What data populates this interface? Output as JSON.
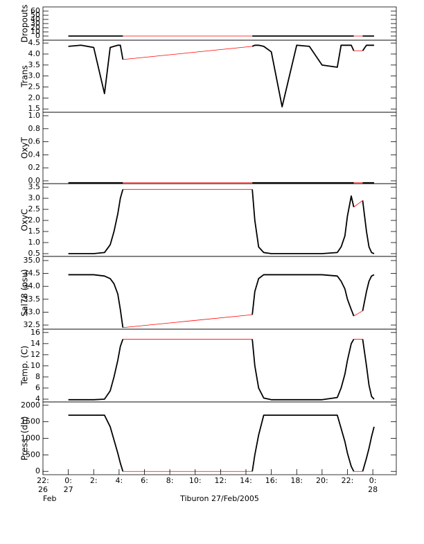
{
  "chart_data": [
    {
      "type": "line",
      "ylabel": "Dropouts",
      "xlim": [
        -2,
        25.85
      ],
      "ylim": [
        -10,
        70
      ],
      "yticks": [
        0,
        10,
        20,
        30,
        40,
        50,
        60
      ],
      "x": [
        0,
        1,
        2,
        2.85,
        3.3,
        3.6,
        3.9,
        4.1,
        4.3,
        9.4,
        14.5,
        14.7,
        15,
        15.4,
        16,
        16.85,
        18,
        19,
        20,
        21.2,
        21.5,
        21.8,
        22,
        22.3,
        22.5,
        22.85,
        23.2,
        23.5,
        23.7,
        23.9,
        24.1
      ],
      "series": [
        {
          "color": "#000000",
          "values": [
            0,
            0,
            0,
            0,
            0,
            0,
            0,
            0,
            0,
            null,
            0,
            0,
            0,
            0,
            0,
            0,
            0,
            0,
            0,
            0,
            0,
            0,
            0,
            0,
            0,
            null,
            0,
            0,
            0,
            0,
            0
          ]
        },
        {
          "color": "#ff0000",
          "values": [
            null,
            null,
            null,
            null,
            null,
            null,
            null,
            null,
            0,
            0,
            0,
            null,
            null,
            null,
            null,
            null,
            null,
            null,
            null,
            null,
            null,
            null,
            null,
            null,
            0,
            0,
            0,
            null,
            null,
            null,
            null
          ]
        }
      ]
    },
    {
      "type": "line",
      "ylabel": "Trans",
      "xlim": [
        -2,
        25.85
      ],
      "ylim": [
        1.35,
        4.63
      ],
      "yticks": [
        1.5,
        {
          "value": 2,
          "label": "2.0"
        },
        2.5,
        {
          "value": 3,
          "label": "3.0"
        },
        3.5,
        {
          "value": 4,
          "label": "4.0"
        },
        4.5
      ],
      "x": [
        0,
        1,
        2,
        2.85,
        3.3,
        3.6,
        3.9,
        4.1,
        4.3,
        9.4,
        14.5,
        14.7,
        15,
        15.4,
        16,
        16.85,
        18,
        19,
        20,
        21.2,
        21.5,
        21.8,
        22,
        22.3,
        22.5,
        22.85,
        23.2,
        23.5,
        23.7,
        23.9,
        24.1
      ],
      "series": [
        {
          "color": "#000000",
          "values": [
            4.35,
            4.4,
            4.3,
            2.2,
            4.3,
            4.35,
            4.4,
            4.4,
            3.75,
            null,
            4.35,
            4.4,
            4.4,
            4.35,
            4.1,
            1.6,
            4.4,
            4.35,
            3.5,
            3.4,
            4.4,
            4.4,
            4.4,
            4.4,
            4.15,
            null,
            4.15,
            4.4,
            4.4,
            4.4,
            4.4
          ]
        },
        {
          "color": "#ff0000",
          "values": [
            null,
            null,
            null,
            null,
            null,
            null,
            null,
            null,
            3.75,
            4.05,
            4.35,
            null,
            null,
            null,
            null,
            null,
            null,
            null,
            null,
            null,
            null,
            null,
            null,
            null,
            4.15,
            4.15,
            4.15,
            null,
            null,
            null,
            null
          ]
        }
      ]
    },
    {
      "type": "line",
      "ylabel": "OxyT",
      "xlim": [
        -2,
        25.85
      ],
      "ylim": [
        -0.043,
        1.053
      ],
      "yticks": [
        {
          "value": 0,
          "label": "0.0"
        },
        0.2,
        0.4,
        0.6,
        0.8,
        {
          "value": 1,
          "label": "1.0"
        }
      ],
      "x": [
        0,
        1,
        2,
        2.85,
        3.3,
        3.6,
        3.9,
        4.1,
        4.3,
        9.4,
        14.5,
        14.7,
        15,
        15.4,
        16,
        16.85,
        18,
        19,
        20,
        21.2,
        21.5,
        21.8,
        22,
        22.3,
        22.5,
        22.85,
        23.2,
        23.5,
        23.7,
        23.9,
        24.1
      ],
      "series": [
        {
          "color": "#000000",
          "values": [
            -0.03,
            -0.03,
            -0.03,
            -0.03,
            -0.03,
            -0.03,
            -0.03,
            -0.03,
            -0.03,
            null,
            -0.03,
            -0.03,
            -0.03,
            -0.03,
            -0.03,
            -0.03,
            -0.03,
            -0.03,
            -0.03,
            -0.03,
            -0.03,
            -0.03,
            -0.03,
            -0.03,
            -0.03,
            null,
            -0.03,
            -0.03,
            -0.03,
            -0.03,
            -0.03
          ]
        },
        {
          "color": "#ff0000",
          "values": [
            null,
            null,
            null,
            null,
            null,
            null,
            null,
            null,
            -0.03,
            -0.03,
            -0.03,
            null,
            null,
            null,
            null,
            null,
            null,
            null,
            null,
            null,
            null,
            null,
            null,
            null,
            -0.03,
            -0.03,
            -0.03,
            null,
            null,
            null,
            null
          ]
        }
      ]
    },
    {
      "type": "line",
      "ylabel": "OxyC",
      "xlim": [
        -2,
        25.85
      ],
      "ylim": [
        0.375,
        3.66
      ],
      "yticks": [
        0.5,
        {
          "value": 1,
          "label": "1.0"
        },
        1.5,
        {
          "value": 2,
          "label": "2.0"
        },
        2.5,
        {
          "value": 3,
          "label": "3.0"
        },
        3.5
      ],
      "x": [
        0,
        1,
        2,
        2.85,
        3.3,
        3.6,
        3.9,
        4.1,
        4.3,
        9.4,
        14.5,
        14.7,
        15,
        15.4,
        16,
        16.85,
        18,
        19,
        20,
        21.2,
        21.5,
        21.8,
        22,
        22.3,
        22.5,
        22.85,
        23.2,
        23.5,
        23.7,
        23.9,
        24.1
      ],
      "series": [
        {
          "color": "#000000",
          "values": [
            0.5,
            0.5,
            0.5,
            0.55,
            0.9,
            1.5,
            2.3,
            3.0,
            3.4,
            null,
            3.4,
            2.0,
            0.8,
            0.55,
            0.5,
            0.5,
            0.5,
            0.5,
            0.5,
            0.55,
            0.8,
            1.3,
            2.2,
            3.1,
            2.6,
            null,
            2.9,
            1.5,
            0.8,
            0.55,
            0.5
          ]
        },
        {
          "color": "#ff0000",
          "values": [
            null,
            null,
            null,
            null,
            null,
            null,
            null,
            null,
            3.4,
            3.4,
            3.4,
            null,
            null,
            null,
            null,
            null,
            null,
            null,
            null,
            null,
            null,
            null,
            null,
            null,
            2.6,
            2.75,
            2.9,
            null,
            null,
            null,
            null
          ]
        }
      ]
    },
    {
      "type": "line",
      "ylabel": "Sal78 (psu)",
      "xlim": [
        -2,
        25.85
      ],
      "ylim": [
        32.34,
        35.16
      ],
      "yticks": [
        32.5,
        {
          "value": 33,
          "label": "33.0"
        },
        33.5,
        {
          "value": 34,
          "label": "34.0"
        },
        34.5,
        {
          "value": 35,
          "label": "35.0"
        }
      ],
      "x": [
        0,
        1,
        2,
        2.85,
        3.3,
        3.6,
        3.9,
        4.1,
        4.3,
        9.4,
        14.5,
        14.7,
        15,
        15.4,
        16,
        16.85,
        18,
        19,
        20,
        21.2,
        21.5,
        21.8,
        22,
        22.3,
        22.5,
        22.85,
        23.2,
        23.5,
        23.7,
        23.9,
        24.1
      ],
      "series": [
        {
          "color": "#000000",
          "values": [
            34.45,
            34.45,
            34.45,
            34.4,
            34.3,
            34.1,
            33.7,
            33.1,
            32.4,
            null,
            32.9,
            33.8,
            34.3,
            34.45,
            34.45,
            34.45,
            34.45,
            34.45,
            34.45,
            34.4,
            34.2,
            33.9,
            33.5,
            33.1,
            32.85,
            null,
            33.05,
            33.8,
            34.2,
            34.4,
            34.45
          ]
        },
        {
          "color": "#ff0000",
          "values": [
            null,
            null,
            null,
            null,
            null,
            null,
            null,
            null,
            32.4,
            32.65,
            32.9,
            null,
            null,
            null,
            null,
            null,
            null,
            null,
            null,
            null,
            null,
            null,
            null,
            null,
            32.85,
            32.95,
            33.05,
            null,
            null,
            null,
            null
          ]
        }
      ]
    },
    {
      "type": "line",
      "ylabel": "Temp. (C)",
      "xlim": [
        -2,
        25.85
      ],
      "ylim": [
        3.5,
        16.6
      ],
      "yticks": [
        4,
        6,
        8,
        10,
        12,
        14,
        16
      ],
      "x": [
        0,
        1,
        2,
        2.85,
        3.3,
        3.6,
        3.9,
        4.1,
        4.3,
        9.4,
        14.5,
        14.7,
        15,
        15.4,
        16,
        16.85,
        18,
        19,
        20,
        21.2,
        21.5,
        21.8,
        22,
        22.3,
        22.5,
        22.85,
        23.2,
        23.5,
        23.7,
        23.9,
        24.1
      ],
      "series": [
        {
          "color": "#000000",
          "values": [
            3.9,
            3.9,
            3.9,
            4.0,
            5.5,
            8,
            11,
            13.5,
            14.8,
            null,
            14.8,
            10,
            6,
            4.2,
            3.9,
            3.9,
            3.9,
            3.9,
            3.9,
            4.3,
            6,
            8.5,
            11,
            14,
            14.8,
            null,
            14.8,
            10,
            6.5,
            4.5,
            4.0
          ]
        },
        {
          "color": "#ff0000",
          "values": [
            null,
            null,
            null,
            null,
            null,
            null,
            null,
            null,
            14.8,
            14.8,
            14.8,
            null,
            null,
            null,
            null,
            null,
            null,
            null,
            null,
            null,
            null,
            null,
            null,
            null,
            14.8,
            14.8,
            14.8,
            null,
            null,
            null,
            null
          ]
        }
      ]
    },
    {
      "type": "line",
      "ylabel": "Press. (db)",
      "xlim": [
        -2,
        25.85
      ],
      "ylim": [
        -100,
        2100
      ],
      "yticks": [
        0,
        500,
        1000,
        1500,
        2000
      ],
      "xticks": [
        {
          "value": -2,
          "label": "22:"
        },
        {
          "value": 0,
          "label": "0:"
        },
        {
          "value": 2,
          "label": "2:"
        },
        {
          "value": 4,
          "label": "4:"
        },
        {
          "value": 6,
          "label": "6:"
        },
        {
          "value": 8,
          "label": "8:"
        },
        {
          "value": 10,
          "label": "10:"
        },
        {
          "value": 12,
          "label": "12:"
        },
        {
          "value": 14,
          "label": "14:"
        },
        {
          "value": 16,
          "label": "16:"
        },
        {
          "value": 18,
          "label": "18:"
        },
        {
          "value": 20,
          "label": "20:"
        },
        {
          "value": 22,
          "label": "22:"
        },
        {
          "value": 24,
          "label": "0:"
        }
      ],
      "xtick_day_labels": [
        {
          "value": -2,
          "label": "26"
        },
        {
          "value": 0,
          "label": "27"
        },
        {
          "value": 24,
          "label": "28"
        }
      ],
      "xtick_month_labels": [
        {
          "value": -2,
          "label": "Feb"
        }
      ],
      "xlabel": "Tiburon 27/Feb/2005",
      "x": [
        0,
        1,
        2,
        2.85,
        3.3,
        3.6,
        3.9,
        4.1,
        4.3,
        9.4,
        14.5,
        14.7,
        15,
        15.4,
        16,
        16.85,
        18,
        19,
        20,
        21.2,
        21.5,
        21.8,
        22,
        22.3,
        22.5,
        22.85,
        23.2,
        23.5,
        23.7,
        23.9,
        24.1
      ],
      "series": [
        {
          "color": "#000000",
          "values": [
            1700,
            1700,
            1700,
            1700,
            1350,
            950,
            550,
            250,
            0,
            null,
            0,
            500,
            1100,
            1700,
            1700,
            1700,
            1700,
            1700,
            1700,
            1700,
            1300,
            900,
            550,
            150,
            0,
            null,
            0,
            400,
            700,
            1050,
            1350
          ]
        },
        {
          "color": "#ff0000",
          "values": [
            null,
            null,
            null,
            null,
            null,
            null,
            null,
            null,
            0,
            0,
            0,
            null,
            null,
            null,
            null,
            null,
            null,
            null,
            null,
            null,
            null,
            null,
            null,
            null,
            0,
            0,
            0,
            null,
            null,
            null,
            null
          ]
        }
      ]
    }
  ]
}
